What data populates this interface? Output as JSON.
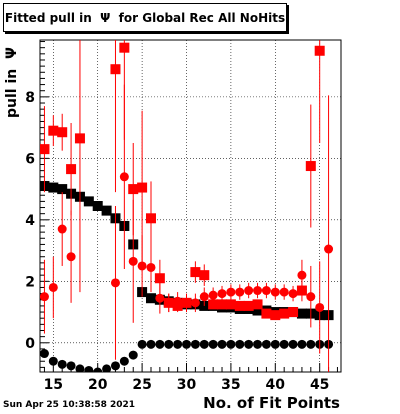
{
  "chart_data": {
    "type": "scatter",
    "title": "Fitted pull in  Ψ  for Global Rec All NoHits",
    "xlabel": "No. of Fit Points",
    "ylabel": "pull in  Ψ",
    "timestamp": "Sun Apr 25 10:38:58 2021",
    "xlim": [
      13.5,
      47.4
    ],
    "ylim": [
      -0.95,
      9.85
    ],
    "xticks": [
      15,
      20,
      25,
      30,
      35,
      40,
      45
    ],
    "yticks": [
      0,
      2,
      4,
      6,
      8
    ],
    "grid": true,
    "series": [
      {
        "color": "#000000",
        "marker": "square",
        "points": [
          [
            14,
            5.1
          ],
          [
            15,
            5.05
          ],
          [
            16,
            5.0
          ],
          [
            17,
            4.85
          ],
          [
            18,
            4.75
          ],
          [
            19,
            4.6
          ],
          [
            20,
            4.45
          ],
          [
            21,
            4.3
          ],
          [
            22,
            4.05
          ],
          [
            23,
            3.8
          ],
          [
            24,
            3.2
          ],
          [
            25,
            1.65
          ],
          [
            26,
            1.45
          ],
          [
            27,
            1.4
          ],
          [
            28,
            1.35
          ],
          [
            29,
            1.3
          ],
          [
            30,
            1.25
          ],
          [
            31,
            1.25
          ],
          [
            32,
            1.2
          ],
          [
            33,
            1.2
          ],
          [
            34,
            1.15
          ],
          [
            35,
            1.15
          ],
          [
            36,
            1.1
          ],
          [
            37,
            1.1
          ],
          [
            38,
            1.05
          ],
          [
            39,
            1.05
          ],
          [
            40,
            1.0
          ],
          [
            41,
            1.0
          ],
          [
            42,
            1.0
          ],
          [
            43,
            0.95
          ],
          [
            44,
            0.95
          ],
          [
            45,
            0.9
          ],
          [
            46,
            0.9
          ]
        ]
      },
      {
        "color": "#000000",
        "marker": "circle",
        "points": [
          [
            14,
            -0.35
          ],
          [
            15,
            -0.6
          ],
          [
            16,
            -0.7
          ],
          [
            17,
            -0.75
          ],
          [
            18,
            -0.85
          ],
          [
            19,
            -0.9
          ],
          [
            20,
            -0.95
          ],
          [
            21,
            -0.85
          ],
          [
            22,
            -0.75
          ],
          [
            23,
            -0.6
          ],
          [
            24,
            -0.4
          ],
          [
            25,
            -0.05
          ],
          [
            26,
            -0.05
          ],
          [
            27,
            -0.05
          ],
          [
            28,
            -0.05
          ],
          [
            29,
            -0.05
          ],
          [
            30,
            -0.05
          ],
          [
            31,
            -0.05
          ],
          [
            32,
            -0.05
          ],
          [
            33,
            -0.05
          ],
          [
            34,
            -0.05
          ],
          [
            35,
            -0.05
          ],
          [
            36,
            -0.05
          ],
          [
            37,
            -0.05
          ],
          [
            38,
            -0.05
          ],
          [
            39,
            -0.05
          ],
          [
            40,
            -0.05
          ],
          [
            41,
            -0.05
          ],
          [
            42,
            -0.05
          ],
          [
            43,
            -0.05
          ],
          [
            44,
            -0.05
          ],
          [
            45,
            -0.05
          ],
          [
            46,
            -0.05
          ]
        ]
      },
      {
        "color": "#ff0000",
        "marker": "square",
        "points": [
          [
            14,
            6.3,
            1.4
          ],
          [
            15,
            6.9,
            0.5
          ],
          [
            16,
            6.85,
            0.6
          ],
          [
            17,
            5.65,
            1.5
          ],
          [
            18,
            6.65,
            5.0
          ],
          [
            22,
            8.9,
            4.0
          ],
          [
            23,
            9.6,
            3.0
          ],
          [
            24,
            5.0,
            1.5
          ],
          [
            25,
            5.05,
            2.5
          ],
          [
            26,
            4.05,
            1.2
          ],
          [
            27,
            2.1,
            0.6
          ],
          [
            28,
            1.3,
            0.3
          ],
          [
            29,
            1.2,
            0.2
          ],
          [
            30,
            1.3,
            0.2
          ],
          [
            31,
            2.3,
            0.35
          ],
          [
            32,
            2.2,
            0.35
          ],
          [
            33,
            1.25,
            0.15
          ],
          [
            34,
            1.25,
            0.15
          ],
          [
            35,
            1.25,
            0.15
          ],
          [
            36,
            1.2,
            0.15
          ],
          [
            37,
            1.2,
            0.15
          ],
          [
            38,
            1.25,
            0.15
          ],
          [
            39,
            0.95,
            0.15
          ],
          [
            40,
            0.9,
            0.15
          ],
          [
            41,
            0.95,
            0.15
          ],
          [
            42,
            1.0,
            0.15
          ],
          [
            43,
            1.7,
            0.35
          ],
          [
            44,
            5.75,
            2.0
          ],
          [
            45,
            9.5,
            3.0
          ]
        ]
      },
      {
        "color": "#ff0000",
        "marker": "circle",
        "points": [
          [
            14,
            1.5,
            1.2
          ],
          [
            15,
            1.8,
            1.0
          ],
          [
            16,
            3.7,
            1.2
          ],
          [
            17,
            2.8,
            1.5
          ],
          [
            22,
            1.95,
            2.5
          ],
          [
            23,
            5.4,
            3.0
          ],
          [
            24,
            2.65,
            2.0
          ],
          [
            25,
            2.5,
            1.0
          ],
          [
            26,
            2.45,
            0.8
          ],
          [
            27,
            1.45,
            0.5
          ],
          [
            28,
            1.3,
            0.3
          ],
          [
            29,
            1.35,
            0.3
          ],
          [
            30,
            1.3,
            0.3
          ],
          [
            31,
            1.3,
            0.3
          ],
          [
            32,
            1.5,
            0.3
          ],
          [
            33,
            1.55,
            0.25
          ],
          [
            34,
            1.6,
            0.25
          ],
          [
            35,
            1.65,
            0.25
          ],
          [
            36,
            1.65,
            0.25
          ],
          [
            37,
            1.7,
            0.25
          ],
          [
            38,
            1.7,
            0.25
          ],
          [
            39,
            1.7,
            0.25
          ],
          [
            40,
            1.65,
            0.25
          ],
          [
            41,
            1.65,
            0.25
          ],
          [
            42,
            1.6,
            0.25
          ],
          [
            43,
            2.2,
            0.5
          ],
          [
            44,
            1.5,
            1.0
          ],
          [
            45,
            1.15,
            1.5
          ],
          [
            46,
            3.05,
            5.0
          ]
        ]
      }
    ]
  }
}
